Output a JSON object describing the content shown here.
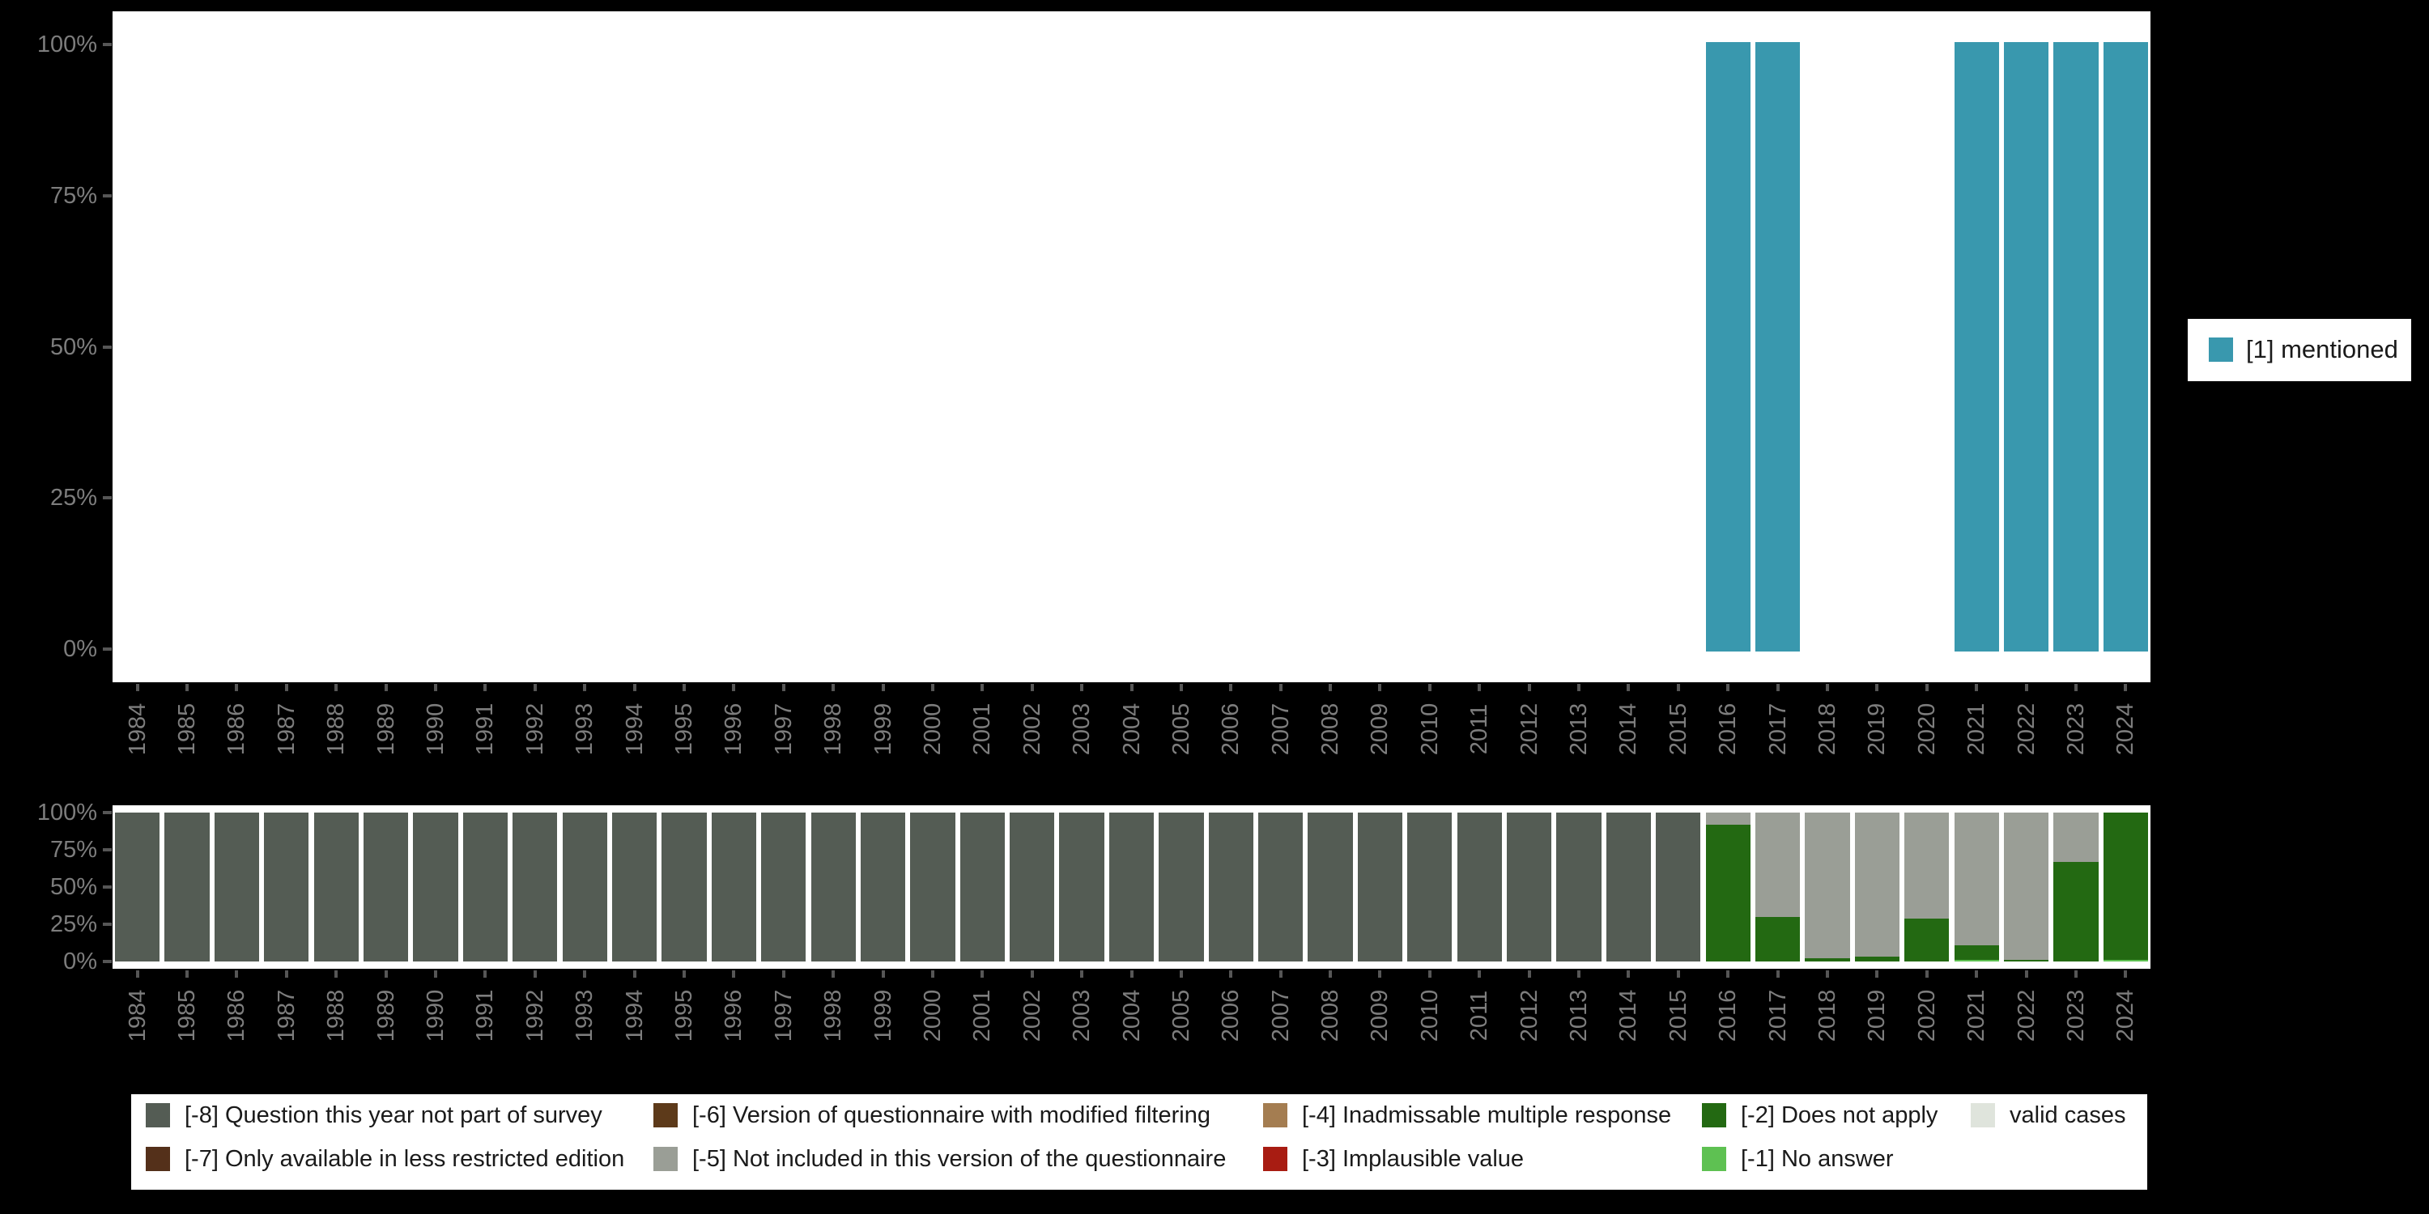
{
  "colors": {
    "background": "#000000",
    "plot_bg": "#ffffff",
    "axis_text": "#7d7d7d",
    "tick": "#565656",
    "legend_text": "#1a1a1a",
    "mentioned": "#3998AE",
    "m8": "#545C54",
    "m7": "#54301A",
    "m6": "#5D3A1A",
    "m5": "#9A9E96",
    "m4": "#A47D51",
    "m3": "#A81C12",
    "m2": "#236912",
    "m1": "#5EC152",
    "valid": "#DFE4DC"
  },
  "years": [
    "1984",
    "1985",
    "1986",
    "1987",
    "1988",
    "1989",
    "1990",
    "1991",
    "1992",
    "1993",
    "1994",
    "1995",
    "1996",
    "1997",
    "1998",
    "1999",
    "2000",
    "2001",
    "2002",
    "2003",
    "2004",
    "2005",
    "2006",
    "2007",
    "2008",
    "2009",
    "2010",
    "2011",
    "2012",
    "2013",
    "2014",
    "2015",
    "2016",
    "2017",
    "2018",
    "2019",
    "2020",
    "2021",
    "2022",
    "2023",
    "2024"
  ],
  "chart_data": [
    {
      "type": "bar",
      "name": "valid-values-distribution",
      "title": "",
      "xlabel": "",
      "ylabel": "",
      "ylim": [
        0,
        100
      ],
      "grid": false,
      "legend_position": "right",
      "y_ticks": [
        "100%",
        "75%",
        "50%",
        "25%",
        "0%"
      ],
      "categories": [
        "1984",
        "1985",
        "1986",
        "1987",
        "1988",
        "1989",
        "1990",
        "1991",
        "1992",
        "1993",
        "1994",
        "1995",
        "1996",
        "1997",
        "1998",
        "1999",
        "2000",
        "2001",
        "2002",
        "2003",
        "2004",
        "2005",
        "2006",
        "2007",
        "2008",
        "2009",
        "2010",
        "2011",
        "2012",
        "2013",
        "2014",
        "2015",
        "2016",
        "2017",
        "2018",
        "2019",
        "2020",
        "2021",
        "2022",
        "2023",
        "2024"
      ],
      "series": [
        {
          "name": "[1] mentioned",
          "color": "#3998AE",
          "values": [
            0,
            0,
            0,
            0,
            0,
            0,
            0,
            0,
            0,
            0,
            0,
            0,
            0,
            0,
            0,
            0,
            0,
            0,
            0,
            0,
            0,
            0,
            0,
            0,
            0,
            0,
            0,
            0,
            0,
            0,
            0,
            0,
            100,
            100,
            0,
            0,
            0,
            100,
            100,
            100,
            100
          ]
        }
      ]
    },
    {
      "type": "stacked-bar",
      "name": "missing-values-distribution",
      "title": "",
      "xlabel": "",
      "ylabel": "",
      "ylim": [
        0,
        100
      ],
      "grid": false,
      "legend_position": "bottom",
      "y_ticks": [
        "100%",
        "75%",
        "50%",
        "25%",
        "0%"
      ],
      "categories": [
        "1984",
        "1985",
        "1986",
        "1987",
        "1988",
        "1989",
        "1990",
        "1991",
        "1992",
        "1993",
        "1994",
        "1995",
        "1996",
        "1997",
        "1998",
        "1999",
        "2000",
        "2001",
        "2002",
        "2003",
        "2004",
        "2005",
        "2006",
        "2007",
        "2008",
        "2009",
        "2010",
        "2011",
        "2012",
        "2013",
        "2014",
        "2015",
        "2016",
        "2017",
        "2018",
        "2019",
        "2020",
        "2021",
        "2022",
        "2023",
        "2024"
      ],
      "series": [
        {
          "name": "[-1] No answer",
          "color": "#5EC152",
          "values": [
            0,
            0,
            0,
            0,
            0,
            0,
            0,
            0,
            0,
            0,
            0,
            0,
            0,
            0,
            0,
            0,
            0,
            0,
            0,
            0,
            0,
            0,
            0,
            0,
            0,
            0,
            0,
            0,
            0,
            0,
            0,
            0,
            0,
            0,
            0,
            0,
            0,
            1,
            0,
            0,
            1
          ]
        },
        {
          "name": "[-2] Does not apply",
          "color": "#236912",
          "values": [
            0,
            0,
            0,
            0,
            0,
            0,
            0,
            0,
            0,
            0,
            0,
            0,
            0,
            0,
            0,
            0,
            0,
            0,
            0,
            0,
            0,
            0,
            0,
            0,
            0,
            0,
            0,
            0,
            0,
            0,
            0,
            0,
            92,
            30,
            2,
            3,
            29,
            10,
            1,
            67,
            99
          ]
        },
        {
          "name": "[-5] Not included in this version of the questionnaire",
          "color": "#9A9E96",
          "values": [
            0,
            0,
            0,
            0,
            0,
            0,
            0,
            0,
            0,
            0,
            0,
            0,
            0,
            0,
            0,
            0,
            0,
            0,
            0,
            0,
            0,
            0,
            0,
            0,
            0,
            0,
            0,
            0,
            0,
            0,
            0,
            0,
            8,
            70,
            98,
            97,
            71,
            89,
            99,
            33,
            0
          ]
        },
        {
          "name": "[-8] Question this year not part of survey",
          "color": "#545C54",
          "values": [
            100,
            100,
            100,
            100,
            100,
            100,
            100,
            100,
            100,
            100,
            100,
            100,
            100,
            100,
            100,
            100,
            100,
            100,
            100,
            100,
            100,
            100,
            100,
            100,
            100,
            100,
            100,
            100,
            100,
            100,
            100,
            100,
            0,
            0,
            0,
            0,
            0,
            0,
            0,
            0,
            0
          ]
        }
      ]
    }
  ],
  "top_legend": {
    "label": "[1] mentioned",
    "color": "#3998AE"
  },
  "missing_legend": [
    {
      "label": "[-8] Question this year not part of survey",
      "color": "#545C54"
    },
    {
      "label": "[-7] Only available in less restricted edition",
      "color": "#54301A"
    },
    {
      "label": "[-6] Version of questionnaire with modified filtering",
      "color": "#5D3A1A"
    },
    {
      "label": "[-5] Not included in this version of the questionnaire",
      "color": "#9A9E96"
    },
    {
      "label": "[-4] Inadmissable multiple response",
      "color": "#A47D51"
    },
    {
      "label": "[-3] Implausible value",
      "color": "#A81C12"
    },
    {
      "label": "[-2] Does not apply",
      "color": "#236912"
    },
    {
      "label": "[-1] No answer",
      "color": "#5EC152"
    },
    {
      "label": "valid cases",
      "color": "#DFE4DC"
    }
  ]
}
